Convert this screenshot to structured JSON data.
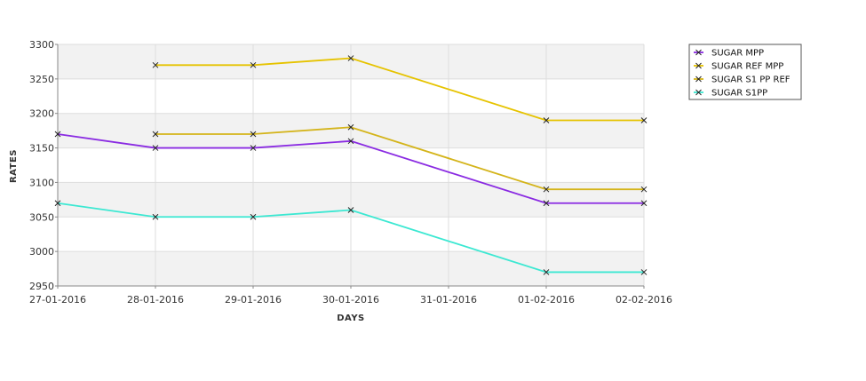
{
  "chart_data": {
    "type": "line",
    "title": "",
    "xlabel": "DAYS",
    "ylabel": "RATES",
    "categories": [
      "27-01-2016",
      "28-01-2016",
      "29-01-2016",
      "30-01-2016",
      "31-01-2016",
      "01-02-2016",
      "02-02-2016"
    ],
    "ylim": [
      2950,
      3300
    ],
    "yticks": [
      2950,
      3000,
      3050,
      3100,
      3150,
      3200,
      3250,
      3300
    ],
    "grid": true,
    "legend_position": "top-right",
    "series": [
      {
        "name": "SUGAR MPP",
        "color": "#8a2be2",
        "values": [
          3170,
          3150,
          3150,
          3160,
          null,
          3070,
          3070
        ]
      },
      {
        "name": "SUGAR REF MPP",
        "color": "#e6c300",
        "values": [
          null,
          3270,
          3270,
          3280,
          null,
          3190,
          3190
        ]
      },
      {
        "name": "SUGAR S1 PP REF",
        "color": "#d4b41a",
        "values": [
          null,
          3170,
          3170,
          3180,
          null,
          3090,
          3090
        ]
      },
      {
        "name": "SUGAR S1PP",
        "color": "#3ce8d2",
        "values": [
          3070,
          3050,
          3050,
          3060,
          null,
          2970,
          2970
        ]
      }
    ]
  }
}
